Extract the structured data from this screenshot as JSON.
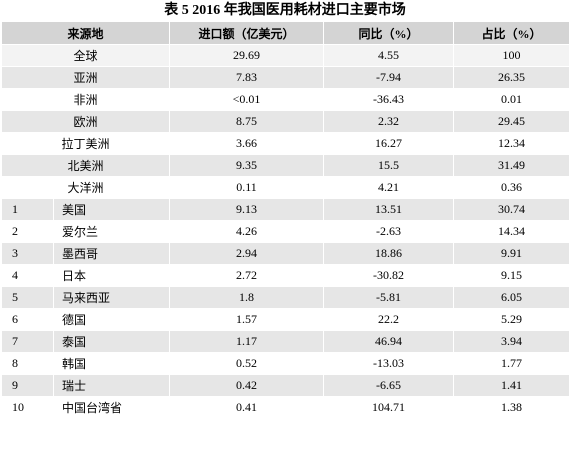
{
  "title": "表 5 2016 年我国医用耗材进口主要市场",
  "table": {
    "header": [
      "来源地",
      "进口额（亿美元）",
      "同比（%）",
      "占比（%）"
    ],
    "rows": [
      [
        "全球",
        "29.69",
        "4.55",
        "100"
      ],
      [
        "亚洲",
        "7.83",
        "-7.94",
        "26.35"
      ],
      [
        "非洲",
        "<0.01",
        "-36.43",
        "0.01"
      ],
      [
        "欧洲",
        "8.75",
        "2.32",
        "29.45"
      ],
      [
        "拉丁美洲",
        "3.66",
        "16.27",
        "12.34"
      ],
      [
        "北美洲",
        "9.35",
        "15.5",
        "31.49"
      ],
      [
        "大洋洲",
        "0.11",
        "4.21",
        "0.36"
      ],
      [
        "1",
        "美国",
        "9.13",
        "13.51",
        "30.74"
      ],
      [
        "2",
        "爱尔兰",
        "4.26",
        "-2.63",
        "14.34"
      ],
      [
        "3",
        "墨西哥",
        "2.94",
        "18.86",
        "9.91"
      ],
      [
        "4",
        "日本",
        "2.72",
        "-30.82",
        "9.15"
      ],
      [
        "5",
        "马来西亚",
        "1.8",
        "-5.81",
        "6.05"
      ],
      [
        "6",
        "德国",
        "1.57",
        "22.2",
        "5.29"
      ],
      [
        "7",
        "泰国",
        "1.17",
        "46.94",
        "3.94"
      ],
      [
        "8",
        "韩国",
        "0.52",
        "-13.03",
        "1.77"
      ],
      [
        "9",
        "瑞士",
        "0.42",
        "-6.65",
        "1.41"
      ],
      [
        "10",
        "中国台湾省",
        "0.41",
        "104.71",
        "1.38"
      ]
    ]
  }
}
